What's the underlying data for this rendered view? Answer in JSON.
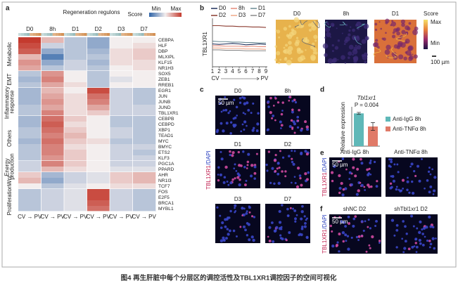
{
  "caption": "图4 再生肝脏中每个分层区的调控活性及TBL1XR1调控因子的空间可视化",
  "maps": {
    "titles": [
      "D0",
      "8h",
      "D1"
    ],
    "colorbar_title": "Score",
    "max": "Max",
    "min": "Min",
    "scale": "100 µm"
  },
  "panel_c": {
    "label": "c",
    "images": [
      "D0",
      "8h",
      "D1",
      "D2",
      "D3",
      "D7"
    ],
    "scale": "50 µm",
    "stain": [
      "TBL1XR1",
      "/DAPI"
    ]
  },
  "panel_e": {
    "label": "e",
    "images": [
      "Anti-IgG 8h",
      "Anti-TNFα 8h"
    ],
    "scale": "50 µm",
    "stain": [
      "TBL1XR1",
      "/DAPI"
    ]
  },
  "panel_f": {
    "label": "f",
    "images": [
      "shNC D2",
      "shTbl1xr1 D2"
    ],
    "scale": "50 µm",
    "stain": [
      "TBL1XR1",
      "/DAPI"
    ]
  },
  "chart_data": [
    {
      "type": "heatmap",
      "panel_label": "a",
      "title": "Regeneration regulons",
      "colorbar_title": "Score",
      "colorbar_labels": [
        "Min",
        "Max"
      ],
      "columns": [
        "D0",
        "8h",
        "D1",
        "D2",
        "D3",
        "D7"
      ],
      "x_labels": [
        "CV → PV",
        "CV → PV",
        "CV → PV",
        "CV → PV",
        "CV → PV",
        "CV → PV"
      ],
      "zlim": [
        -1,
        1
      ],
      "groups": [
        {
          "name": "Metabolic",
          "genes": [
            "CEBPA",
            "HLF",
            "DBP",
            "MLXIPL",
            "KLF15",
            "NR1H3"
          ],
          "values": [
            [
              1,
              0.3,
              -0.3,
              -0.5,
              0,
              0
            ],
            [
              0.9,
              -0.2,
              -0.3,
              -0.5,
              0,
              0.1
            ],
            [
              0.8,
              -0.5,
              -0.3,
              -0.4,
              0.1,
              0.2
            ],
            [
              0.3,
              -0.8,
              -0.3,
              -0.3,
              0.1,
              0.2
            ],
            [
              0.5,
              -0.5,
              -0.2,
              -0.4,
              0.1,
              0.1
            ],
            [
              0.4,
              -0.3,
              -0.2,
              -0.3,
              0,
              0.1
            ]
          ]
        },
        {
          "name": "EMT",
          "genes": [
            "SOX5",
            "ZEB1",
            "RREB1"
          ],
          "values": [
            [
              -0.3,
              0.5,
              0,
              -0.3,
              0,
              0
            ],
            [
              -0.4,
              0.6,
              0,
              -0.3,
              -0.1,
              0
            ],
            [
              -0.3,
              0.4,
              0.1,
              -0.3,
              0,
              0
            ]
          ]
        },
        {
          "name": "Inflammatory response",
          "genes": [
            "EGR1",
            "JUN",
            "JUNB",
            "JUND",
            "TBL1XR1"
          ],
          "values": [
            [
              -0.4,
              0.3,
              0,
              0.9,
              -0.2,
              -0.3
            ],
            [
              -0.4,
              0.4,
              0.1,
              0.7,
              -0.2,
              -0.3
            ],
            [
              -0.4,
              0.5,
              0.1,
              0.6,
              -0.2,
              -0.3
            ],
            [
              -0.3,
              0.4,
              0.1,
              0.4,
              -0.2,
              -0.2
            ],
            [
              -0.3,
              0.6,
              0.1,
              0.2,
              -0.2,
              -0.2
            ]
          ]
        },
        {
          "name": "Others",
          "genes": [
            "CEBPB",
            "CEBPD",
            "XBP1",
            "TEAD1",
            "MYC",
            "BMYC",
            "ETS2",
            "KLF3"
          ],
          "values": [
            [
              -0.4,
              0.7,
              0.2,
              0,
              -0.3,
              -0.3
            ],
            [
              -0.4,
              0.8,
              0.1,
              0,
              -0.3,
              -0.3
            ],
            [
              -0.3,
              0.7,
              0.2,
              0,
              -0.2,
              -0.3
            ],
            [
              -0.3,
              0.6,
              0.3,
              0,
              -0.2,
              -0.3
            ],
            [
              -0.4,
              0.7,
              0.2,
              0.1,
              -0.3,
              -0.3
            ],
            [
              -0.3,
              0.6,
              0.1,
              0,
              -0.2,
              -0.2
            ],
            [
              -0.3,
              0.6,
              0.2,
              0,
              -0.2,
              -0.3
            ],
            [
              -0.3,
              0.5,
              0.2,
              0,
              -0.2,
              -0.2
            ]
          ]
        },
        {
          "name": "Energy production",
          "genes": [
            "PGC1A",
            "PPARD"
          ],
          "values": [
            [
              -0.2,
              0.6,
              0.2,
              0,
              -0.2,
              -0.2
            ],
            [
              -0.2,
              0.3,
              0.1,
              0,
              -0.1,
              -0.1
            ]
          ]
        },
        {
          "name": "Wnt",
          "genes": [
            "AHR",
            "NR1I3",
            "TCF7"
          ],
          "values": [
            [
              0.2,
              -0.4,
              -0.2,
              -0.1,
              0.2,
              0.3
            ],
            [
              0.3,
              -0.5,
              -0.2,
              -0.1,
              0.2,
              0.3
            ],
            [
              0,
              -0.3,
              -0.1,
              0,
              0.1,
              0.1
            ]
          ]
        },
        {
          "name": "Proliferation",
          "genes": [
            "FOS",
            "E2F5",
            "BRCA1",
            "MYBL1"
          ],
          "values": [
            [
              -0.3,
              -0.2,
              -0.1,
              0.9,
              -0.2,
              -0.3
            ],
            [
              -0.3,
              -0.2,
              -0.1,
              0.9,
              -0.2,
              -0.3
            ],
            [
              -0.3,
              -0.2,
              -0.1,
              0.8,
              -0.2,
              -0.3
            ],
            [
              -0.3,
              -0.2,
              -0.1,
              0.7,
              -0.2,
              -0.3
            ]
          ]
        }
      ]
    },
    {
      "type": "line",
      "panel_label": "b",
      "ylabel": "TBL1XR1",
      "xlabel_start": "CV",
      "xlabel_end": "PV",
      "x": [
        1,
        2,
        3,
        4,
        5,
        6,
        7,
        8,
        9
      ],
      "xlim": [
        1,
        9
      ],
      "xticks": [
        1,
        2,
        3,
        4,
        5,
        6,
        7,
        8,
        9
      ],
      "ylim": [
        0,
        1
      ],
      "series": [
        {
          "name": "D0",
          "color": "#1f2f5a",
          "values": [
            0.5,
            0.49,
            0.5,
            0.51,
            0.5,
            0.48,
            0.49,
            0.5,
            0.49
          ]
        },
        {
          "name": "8h",
          "color": "#e58a7a",
          "values": [
            0.46,
            0.46,
            0.45,
            0.45,
            0.45,
            0.44,
            0.45,
            0.44,
            0.44
          ]
        },
        {
          "name": "D1",
          "color": "#6a8a94",
          "values": [
            0.56,
            0.55,
            0.55,
            0.54,
            0.54,
            0.53,
            0.53,
            0.52,
            0.52
          ]
        },
        {
          "name": "D2",
          "color": "#8b3a2f",
          "values": [
            0.9,
            0.9,
            0.89,
            0.89,
            0.88,
            0.88,
            0.87,
            0.87,
            0.86
          ]
        },
        {
          "name": "D3",
          "color": "#f0a888",
          "values": [
            0.41,
            0.41,
            0.4,
            0.4,
            0.4,
            0.39,
            0.39,
            0.39,
            0.38
          ]
        },
        {
          "name": "D7",
          "color": "#8a8a8a",
          "values": [
            0.37,
            0.37,
            0.36,
            0.36,
            0.36,
            0.35,
            0.35,
            0.35,
            0.35
          ]
        }
      ]
    },
    {
      "type": "bar",
      "panel_label": "d",
      "title": "Tbl1xr1",
      "ylabel": "Relative expression",
      "annotation": "P = 0.004",
      "categories": [
        "Anti-IgG 8h",
        "Anti-TNFα 8h"
      ],
      "values": [
        1.0,
        0.6
      ],
      "errors": [
        0.03,
        0.12
      ],
      "colors": [
        "#5fb8b8",
        "#e07a68"
      ],
      "ylim": [
        0,
        1.2
      ]
    }
  ]
}
